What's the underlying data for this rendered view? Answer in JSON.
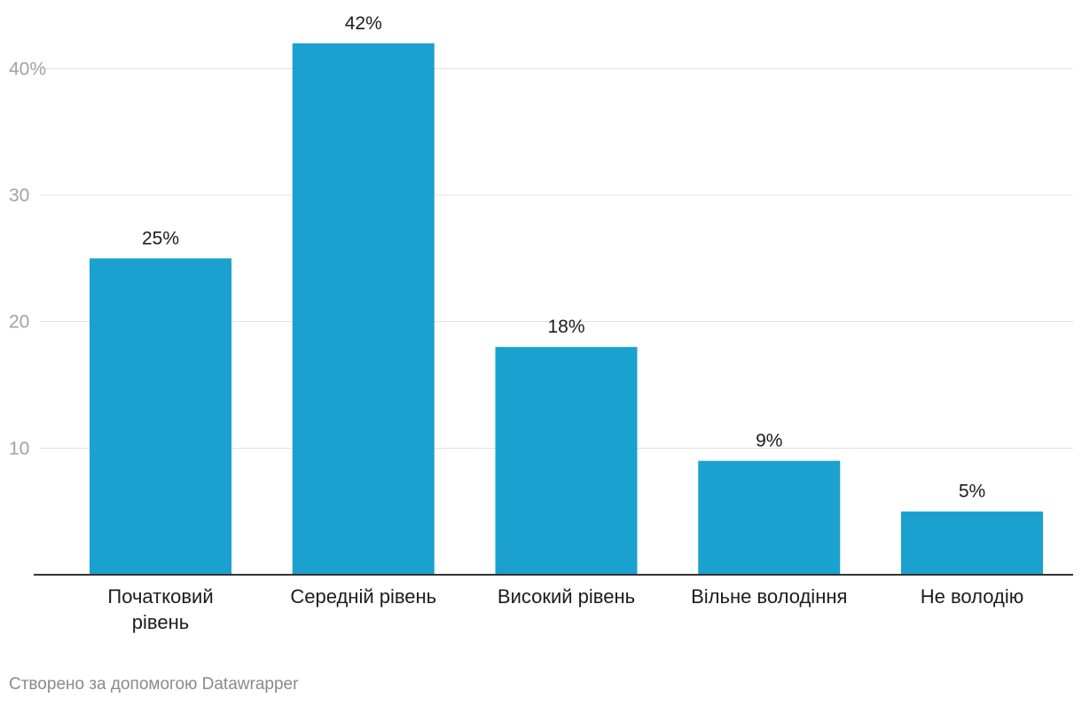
{
  "chart_data": {
    "type": "bar",
    "title": "",
    "xlabel": "",
    "ylabel": "",
    "categories": [
      "Початковий рівень",
      "Середній рівень",
      "Високий рівень",
      "Вільне володіння",
      "Не володію"
    ],
    "values": [
      25,
      42,
      18,
      9,
      5
    ],
    "data_labels": [
      "25%",
      "42%",
      "18%",
      "9%",
      "5%"
    ],
    "ylim": [
      0,
      45
    ],
    "y_ticks": [
      10,
      20,
      30,
      40
    ],
    "y_tick_labels": [
      "10",
      "20",
      "30",
      "40%"
    ],
    "grid": true,
    "legend": "none",
    "bar_color": "#1aa1cf"
  },
  "footer": {
    "credit": "Створено за допомогою Datawrapper"
  }
}
